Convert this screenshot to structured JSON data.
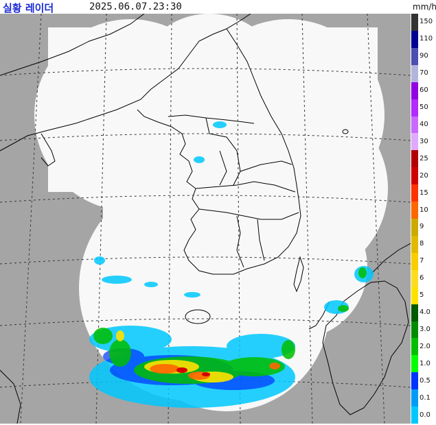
{
  "header": {
    "title": "실황 레이더",
    "timestamp": "2025.06.07.23:30",
    "unit": "mm/h"
  },
  "legend": {
    "levels": [
      {
        "label": "150",
        "color": "#333333"
      },
      {
        "label": "110",
        "color": "#000390"
      },
      {
        "label": "90",
        "color": "#4c4eb1"
      },
      {
        "label": "70",
        "color": "#b3b4de"
      },
      {
        "label": "60",
        "color": "#9300e4"
      },
      {
        "label": "50",
        "color": "#b329ff"
      },
      {
        "label": "40",
        "color": "#c969ff"
      },
      {
        "label": "30",
        "color": "#e0a9ff"
      },
      {
        "label": "25",
        "color": "#b40000"
      },
      {
        "label": "20",
        "color": "#d20000"
      },
      {
        "label": "15",
        "color": "#ff3200"
      },
      {
        "label": "10",
        "color": "#ff6600"
      },
      {
        "label": "9",
        "color": "#ccaa00"
      },
      {
        "label": "8",
        "color": "#e0b900"
      },
      {
        "label": "7",
        "color": "#f9cd00"
      },
      {
        "label": "6",
        "color": "#ffdc1f"
      },
      {
        "label": "5",
        "color": "#ffe100"
      },
      {
        "label": "4.0",
        "color": "#005a00"
      },
      {
        "label": "3.0",
        "color": "#008c00"
      },
      {
        "label": "2.0",
        "color": "#00be00"
      },
      {
        "label": "1.0",
        "color": "#00ff00"
      },
      {
        "label": "0.5",
        "color": "#0033ff"
      },
      {
        "label": "0.1",
        "color": "#009bf5"
      },
      {
        "label": "0.0",
        "color": "#00c8ff"
      }
    ]
  },
  "colors": {
    "outside_coverage": "#a5a5a5",
    "inside_coverage": "#f8f8f8",
    "border": "#000000",
    "grid": "#333333",
    "title": "#1a2bd6"
  }
}
